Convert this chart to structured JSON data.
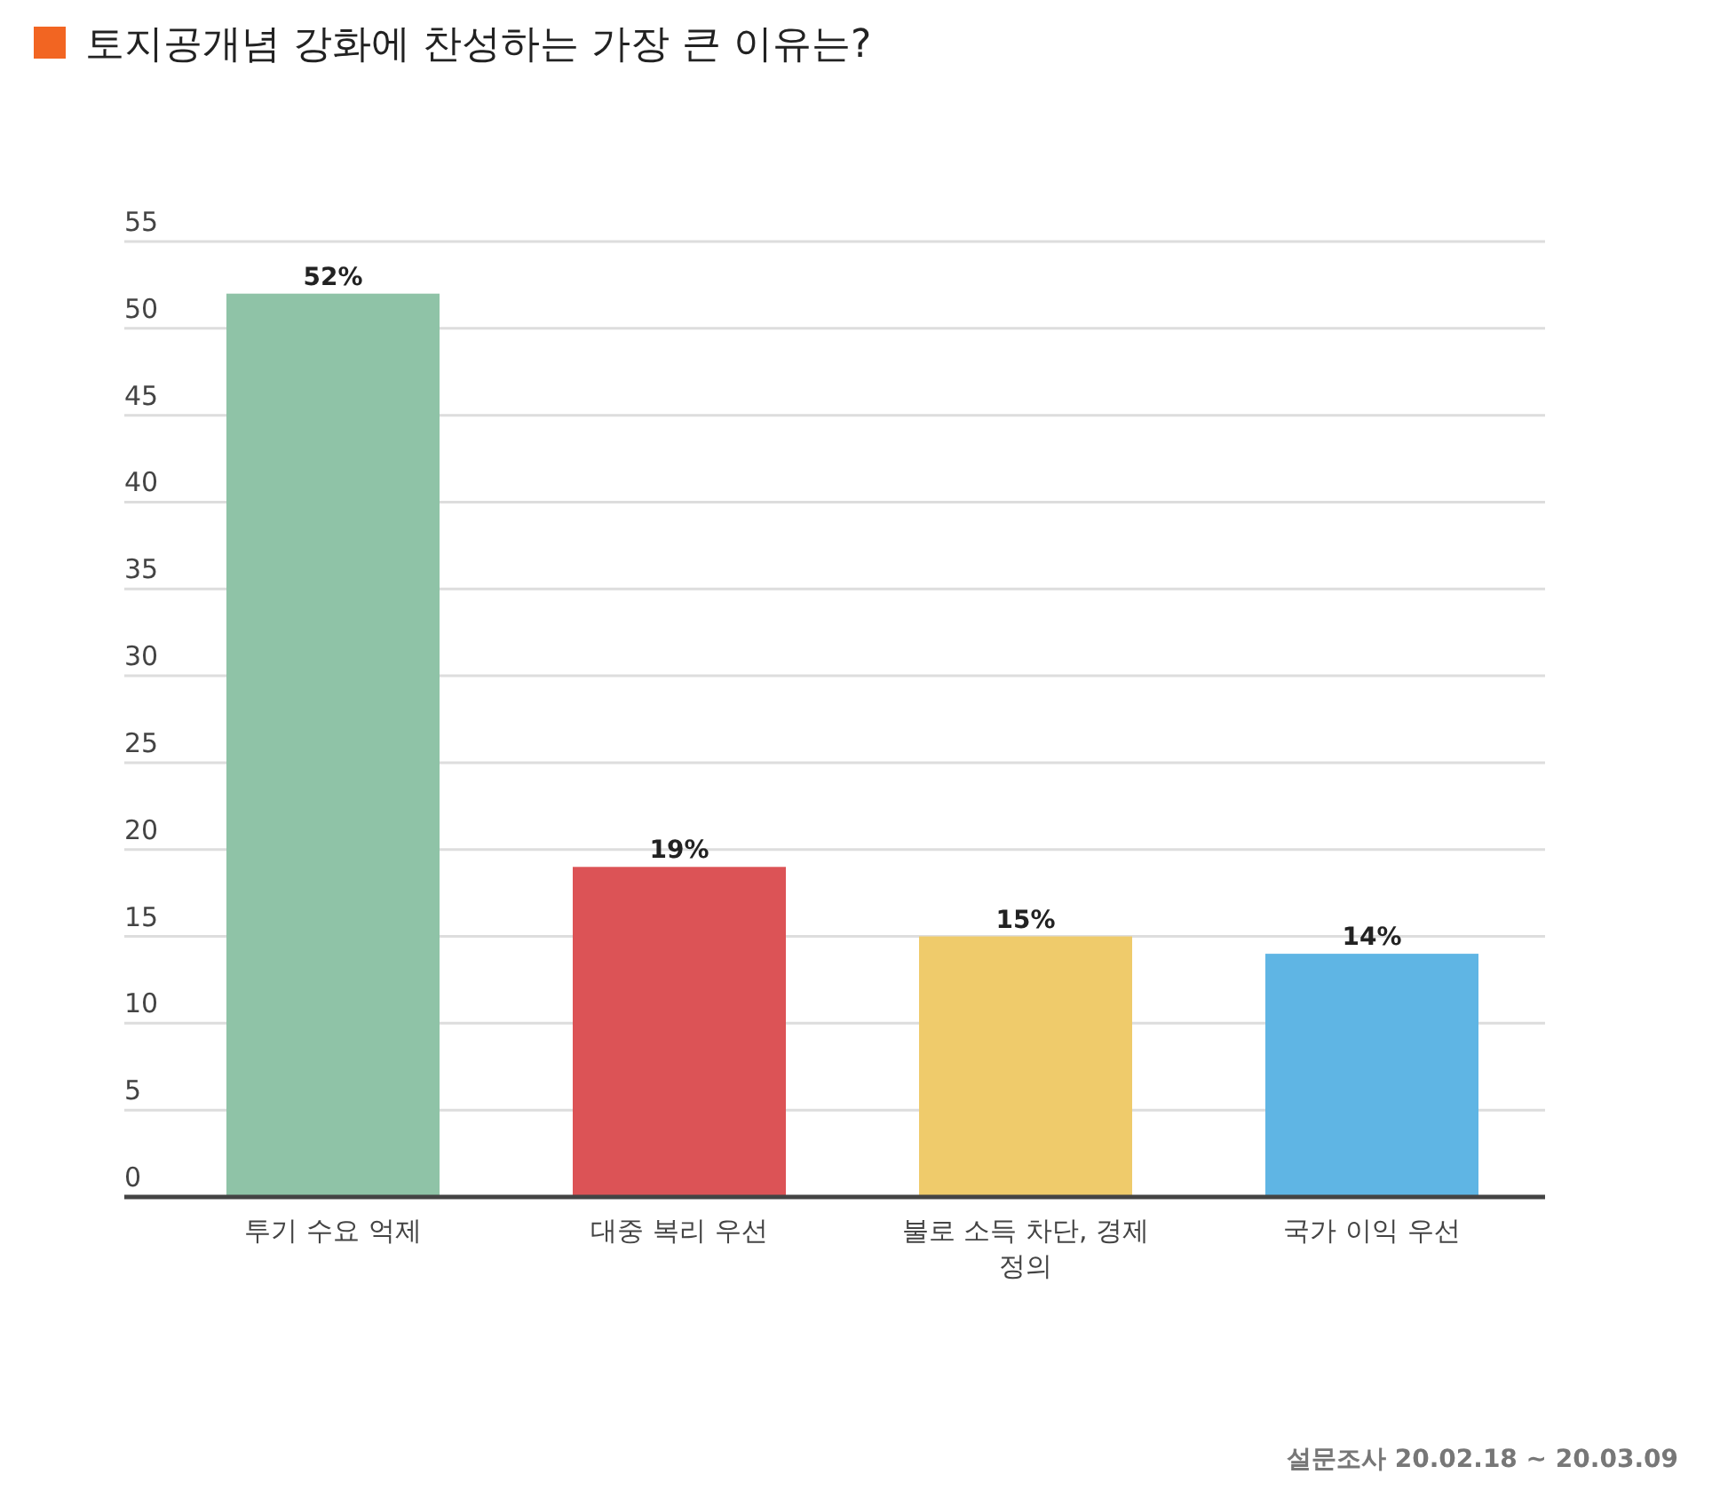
{
  "chart_data": {
    "type": "bar",
    "title": "토지공개념 강화에 찬성하는 가장 큰 이유는?",
    "categories": [
      "투기 수요 억제",
      "대중 복리 우선",
      "불로 소득 차단, 경제 정의",
      "국가 이익 우선"
    ],
    "values": [
      52,
      19,
      15,
      14
    ],
    "colors": [
      "#8fc3a7",
      "#dc5356",
      "#efcb6b",
      "#5fb5e4"
    ],
    "ylim": [
      0,
      55
    ],
    "yticks": [
      0,
      5,
      10,
      15,
      20,
      25,
      30,
      35,
      40,
      45,
      50,
      55
    ],
    "grid": "y",
    "value_labels": [
      "52%",
      "19%",
      "15%",
      "14%"
    ],
    "annotations": [
      "설문조사 20.02.18 ~ 20.03.09"
    ]
  }
}
